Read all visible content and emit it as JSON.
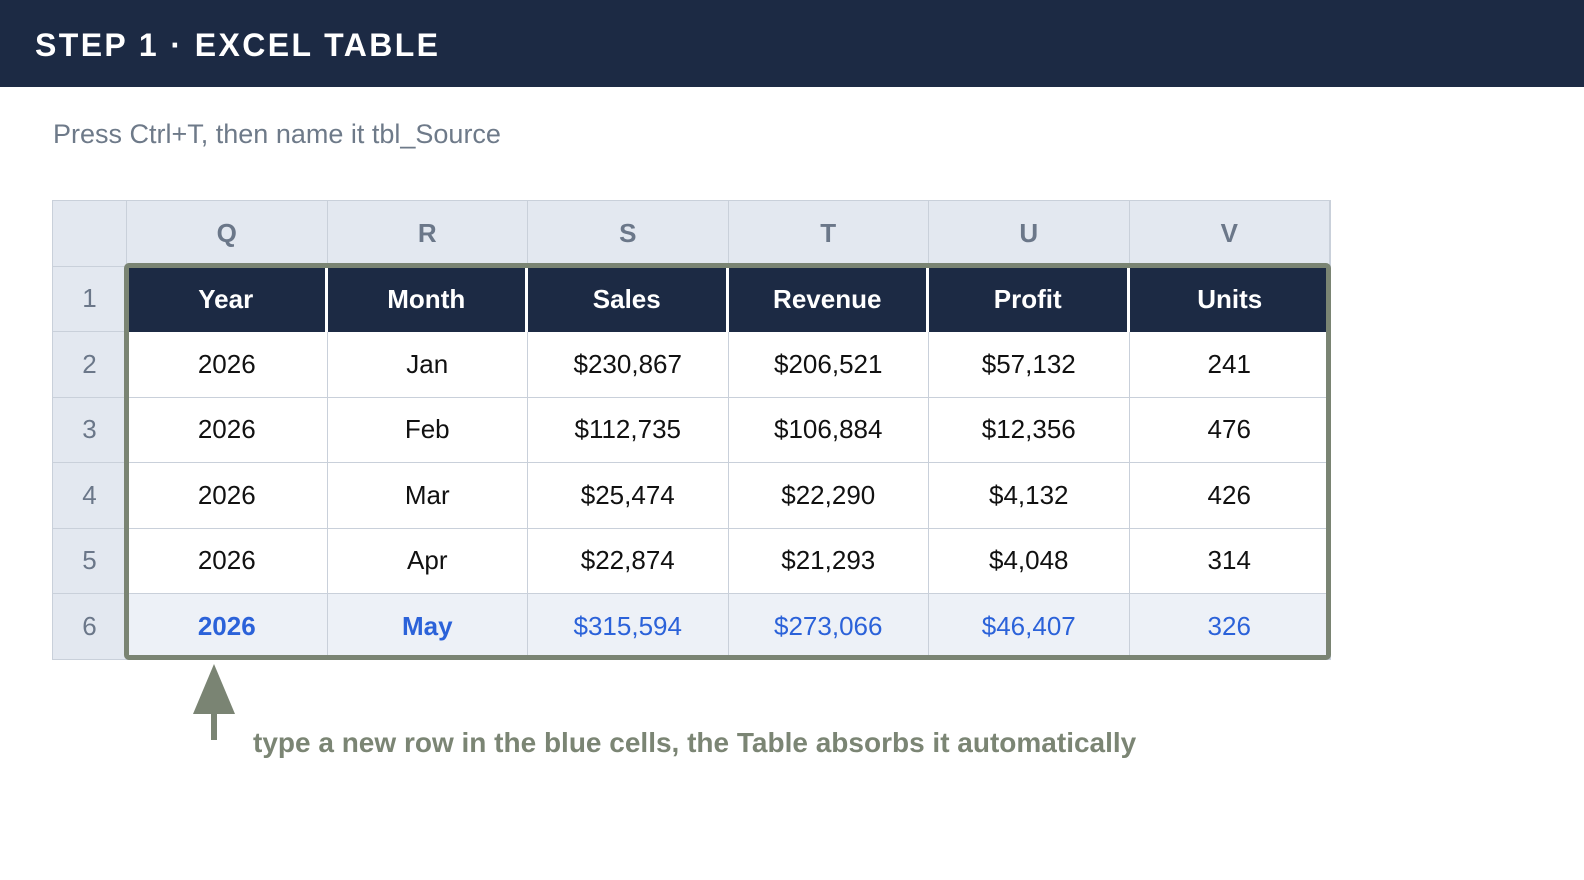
{
  "header": {
    "title": "STEP 1 · EXCEL TABLE"
  },
  "subtitle": "Press Ctrl+T, then name it tbl_Source",
  "sheet": {
    "column_letters": [
      "Q",
      "R",
      "S",
      "T",
      "U",
      "V"
    ],
    "row_numbers": [
      "1",
      "2",
      "3",
      "4",
      "5",
      "6"
    ],
    "table_headers": [
      "Year",
      "Month",
      "Sales",
      "Revenue",
      "Profit",
      "Units"
    ],
    "rows": [
      [
        "2026",
        "Jan",
        "$230,867",
        "$206,521",
        "$57,132",
        "241"
      ],
      [
        "2026",
        "Feb",
        "$112,735",
        "$106,884",
        "$12,356",
        "476"
      ],
      [
        "2026",
        "Mar",
        "$25,474",
        "$22,290",
        "$4,132",
        "426"
      ],
      [
        "2026",
        "Apr",
        "$22,874",
        "$21,293",
        "$4,048",
        "314"
      ]
    ],
    "new_row": [
      "2026",
      "May",
      "$315,594",
      "$273,066",
      "$46,407",
      "326"
    ]
  },
  "annotation": {
    "text": "type a new row in the blue cells, the Table absorbs it automatically",
    "icon": "arrow-up-icon"
  },
  "colors": {
    "header_bg": "#1c2a44",
    "table_border": "#7a8473",
    "new_row_text": "#2b62d9",
    "new_row_bg": "#edf1f7"
  }
}
